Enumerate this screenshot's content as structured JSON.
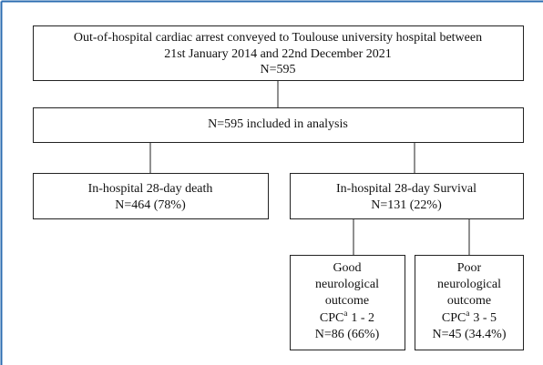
{
  "nodes": [
    {
      "lines": [
        "Out-of-hospital cardiac arrest conveyed to Toulouse university hospital between",
        "21st January 2014 and 22nd December 2021",
        "N=595"
      ]
    },
    {
      "lines": [
        "N=595 included in analysis"
      ]
    },
    {
      "lines": [
        "In-hospital 28-day death",
        "N=464 (78%)"
      ]
    },
    {
      "lines": [
        "In-hospital 28-day Survival",
        "N=131 (22%)"
      ]
    },
    {
      "lines": [
        "Good",
        "neurological",
        "outcome"
      ],
      "cpc": {
        "label": "CPC",
        "note": "a",
        "range": "1 - 2"
      },
      "n": "N=86 (66%)"
    },
    {
      "lines": [
        "Poor",
        "neurological",
        "outcome"
      ],
      "cpc": {
        "label": "CPC",
        "note": "a",
        "range": "3 - 5"
      },
      "n": "N=45 (34.4%)"
    }
  ]
}
